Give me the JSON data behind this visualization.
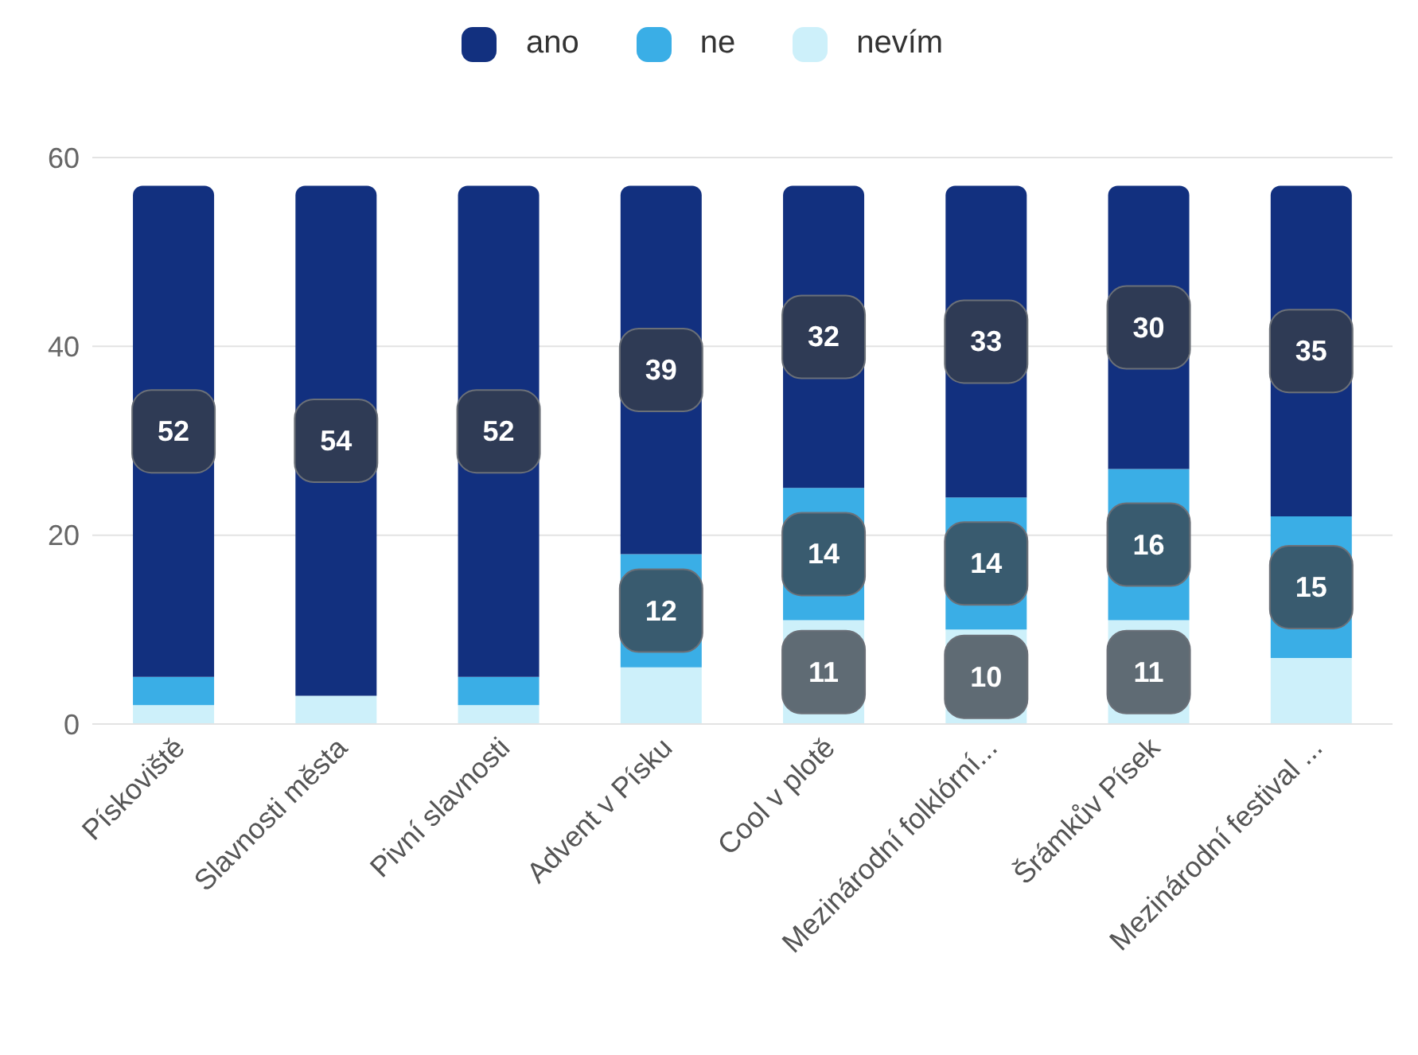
{
  "chart_data": {
    "type": "bar",
    "stacked": true,
    "categories": [
      "Pískoviště",
      "Slavnosti města",
      "Pivní slavnosti",
      "Advent v Písku",
      "Cool v plotě",
      "Mezinárodní folklórní...",
      "Šrámkův Písek",
      "Mezinárodní festival ..."
    ],
    "series": [
      {
        "name": "nevím",
        "color": "#cdf0fa",
        "values": [
          2,
          3,
          2,
          6,
          11,
          10,
          11,
          7
        ],
        "value_labels": [
          null,
          null,
          null,
          null,
          "11",
          "10",
          "11",
          null
        ]
      },
      {
        "name": "ne",
        "color": "#3aaee6",
        "values": [
          3,
          0,
          3,
          12,
          14,
          14,
          16,
          15
        ],
        "value_labels": [
          null,
          null,
          null,
          "12",
          "14",
          "14",
          "16",
          "15"
        ]
      },
      {
        "name": "ano",
        "color": "#12307f",
        "values": [
          52,
          54,
          52,
          39,
          32,
          33,
          30,
          35
        ],
        "value_labels": [
          "52",
          "54",
          "52",
          "39",
          "32",
          "33",
          "30",
          "35"
        ]
      }
    ],
    "ylim": [
      0,
      60
    ],
    "yticks": [
      0,
      20,
      40,
      60
    ],
    "grid": "y",
    "legend": "top"
  }
}
